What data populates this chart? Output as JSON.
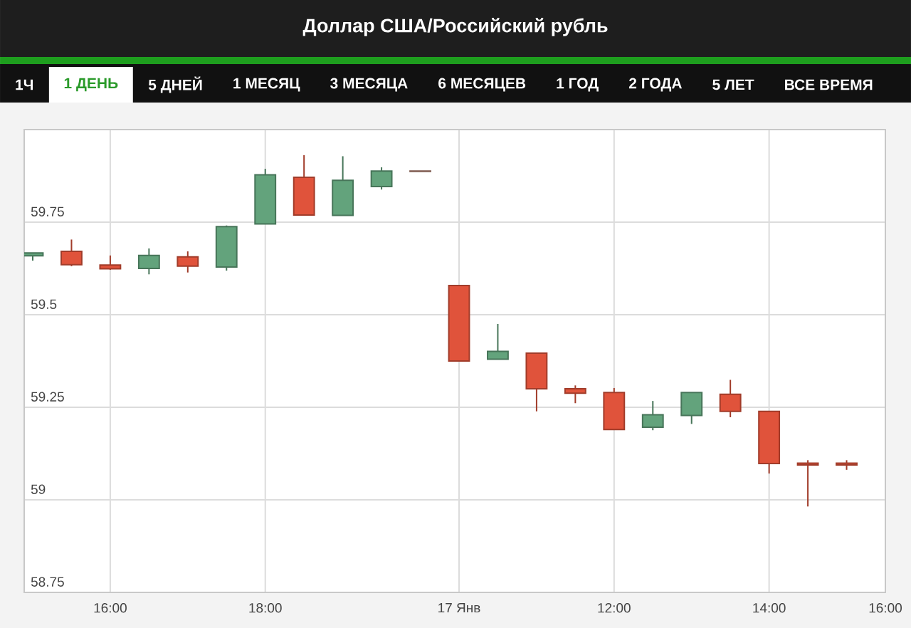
{
  "chart_data": {
    "type": "candlestick",
    "title": "Доллар США/Российский рубль",
    "annotations": [
      "1Ч",
      "1 ДЕНЬ",
      "5 ДНЕЙ",
      "1 МЕСЯЦ",
      "3 МЕСЯЦА",
      "6 МЕСЯЦЕВ",
      "1 ГОД",
      "2 ГОДА",
      "5 ЛЕТ",
      "ВСЕ ВРЕМЯ"
    ],
    "categories": [
      null,
      null,
      "16:00",
      null,
      null,
      null,
      "18:00",
      null,
      null,
      null,
      null,
      "17 Янв",
      null,
      null,
      null,
      "12:00",
      null,
      null,
      null,
      "14:00",
      null,
      null,
      "16:00"
    ],
    "ohlc": [
      [
        59.659,
        59.667,
        59.646,
        59.667
      ],
      [
        59.671,
        59.703,
        59.631,
        59.635
      ],
      [
        59.634,
        59.66,
        59.621,
        59.624
      ],
      [
        59.625,
        59.679,
        59.609,
        59.66
      ],
      [
        59.656,
        59.671,
        59.614,
        59.631
      ],
      [
        59.629,
        59.741,
        59.619,
        59.738
      ],
      [
        59.745,
        59.894,
        59.745,
        59.878
      ],
      [
        59.871,
        59.931,
        59.769,
        59.769
      ],
      [
        59.768,
        59.928,
        59.768,
        59.863
      ],
      [
        59.846,
        59.898,
        59.838,
        59.888
      ],
      [
        59.888,
        59.888,
        59.887,
        59.887
      ],
      [
        59.579,
        59.579,
        59.375,
        59.375
      ],
      [
        59.38,
        59.475,
        59.38,
        59.401
      ],
      [
        59.396,
        59.396,
        59.239,
        59.3
      ],
      [
        59.3,
        59.309,
        59.261,
        59.288
      ],
      [
        59.29,
        59.302,
        59.19,
        59.19
      ],
      [
        59.196,
        59.267,
        59.188,
        59.23
      ],
      [
        59.228,
        59.29,
        59.205,
        59.29
      ],
      [
        59.285,
        59.324,
        59.223,
        59.239
      ],
      [
        59.239,
        59.239,
        59.071,
        59.098
      ],
      [
        59.099,
        59.107,
        58.982,
        59.094
      ],
      [
        59.099,
        59.107,
        59.081,
        59.094
      ],
      null
    ],
    "colors": [
      "#63a37c",
      "#e0533b",
      "#e0533b",
      "#63a37c",
      "#e0533b",
      "#63a37c",
      "#63a37c",
      "#e0533b",
      "#63a37c",
      "#63a37c",
      "#b0806f",
      "#e0533b",
      "#63a37c",
      "#e0533b",
      "#e0533b",
      "#e0533b",
      "#63a37c",
      "#63a37c",
      "#e0533b",
      "#e0533b",
      "#e0533b",
      "#e0533b",
      null
    ],
    "ylim": [
      58.75,
      60
    ],
    "yticks": [
      58.75,
      59,
      59.25,
      59.5,
      59.75
    ],
    "grid": true
  }
}
